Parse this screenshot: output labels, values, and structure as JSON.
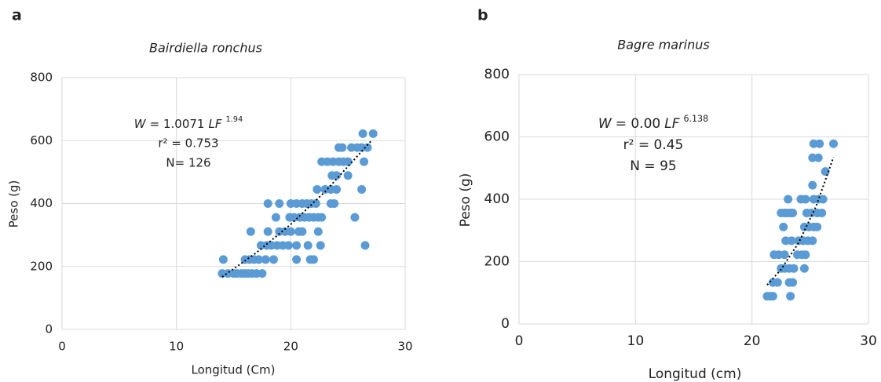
{
  "chart_data": [
    {
      "type": "scatter",
      "panel_label": "a",
      "title": "Bairdiella ronchus",
      "xlabel": "Longitud (Cm)",
      "ylabel": "Peso (g)",
      "equation": {
        "lhs": "W",
        "coef": "= 1.0071",
        "var": "LF",
        "exp": "1.94"
      },
      "r2": "r² = 0.753",
      "n": "N= 126",
      "color": "#5b9bd5",
      "grid": true,
      "xlim": [
        0,
        30
      ],
      "xticks": [
        0,
        10,
        20,
        30
      ],
      "ylim": [
        0,
        800
      ],
      "yticks": [
        0,
        200,
        400,
        600,
        800
      ],
      "x": [
        14,
        14.5,
        15,
        15.3,
        15.7,
        16,
        16.3,
        16.6,
        17,
        17.5,
        14.1,
        16,
        16.4,
        16.8,
        17.2,
        17.8,
        18.5,
        20.5,
        21.7,
        22,
        17.4,
        17.9,
        18.3,
        18.8,
        19.3,
        19.8,
        20.5,
        21.5,
        22.6,
        26.5,
        16.5,
        18,
        19,
        19.5,
        20,
        20.7,
        21,
        22.4,
        18.7,
        19.9,
        20.3,
        20.8,
        21.2,
        21.6,
        22,
        22.4,
        22.7,
        25.6,
        18,
        19,
        20,
        20.5,
        21,
        21.4,
        21.8,
        22.2,
        23.5,
        23.8,
        22.3,
        23,
        23.5,
        24,
        26.2,
        23.6,
        24,
        25,
        22.7,
        23.2,
        23.7,
        24.2,
        24.6,
        25,
        26.4,
        24.2,
        24.5,
        25.3,
        25.8,
        26.2,
        26.7,
        26.3,
        27.2
      ],
      "y": [
        178,
        178,
        178,
        178,
        178,
        178,
        178,
        178,
        178,
        178,
        222,
        222,
        222,
        222,
        222,
        222,
        222,
        222,
        222,
        222,
        267,
        267,
        267,
        267,
        267,
        267,
        267,
        267,
        267,
        267,
        311,
        311,
        311,
        311,
        311,
        311,
        311,
        311,
        356,
        356,
        356,
        356,
        356,
        356,
        356,
        356,
        356,
        356,
        400,
        400,
        400,
        400,
        400,
        400,
        400,
        400,
        400,
        400,
        445,
        445,
        445,
        445,
        445,
        489,
        489,
        489,
        533,
        533,
        533,
        533,
        533,
        533,
        533,
        578,
        578,
        578,
        578,
        578,
        578,
        622,
        622
      ],
      "trendline": {
        "x": [
          14,
          17,
          20,
          23,
          27
        ],
        "y": [
          167,
          244,
          334,
          438,
          598
        ]
      }
    },
    {
      "type": "scatter",
      "panel_label": "b",
      "title": "Bagre marinus",
      "xlabel": "Longitud (cm)",
      "ylabel": "Peso (g)",
      "equation": {
        "lhs": "W",
        "coef": "= 0.00",
        "var": "LF",
        "exp": "6.138"
      },
      "r2": "r² = 0.45",
      "n": "N = 95",
      "color": "#5b9bd5",
      "grid": true,
      "xlim": [
        0,
        30
      ],
      "xticks": [
        0,
        10,
        20,
        30
      ],
      "ylim": [
        0,
        800
      ],
      "yticks": [
        0,
        200,
        400,
        600,
        800
      ],
      "x": [
        21.3,
        21.6,
        21.8,
        23.3,
        21.8,
        22.2,
        23.2,
        23.5,
        22.5,
        22.8,
        23.2,
        23.6,
        24.5,
        21.9,
        22.3,
        22.8,
        23.9,
        24.3,
        24.6,
        22.9,
        23.4,
        24,
        24.4,
        24.8,
        25.2,
        22.7,
        24.5,
        24.9,
        25.3,
        25.6,
        22.5,
        22.8,
        23,
        23.3,
        23.5,
        24.7,
        25.1,
        25.6,
        26,
        23.1,
        24.2,
        24.6,
        25.3,
        25.7,
        26.1,
        25.2,
        26.3,
        25.2,
        25.7,
        25.3,
        25.8,
        27
      ],
      "y": [
        89,
        89,
        89,
        89,
        133,
        133,
        133,
        133,
        178,
        178,
        178,
        178,
        178,
        222,
        222,
        222,
        222,
        222,
        222,
        267,
        267,
        267,
        267,
        267,
        267,
        311,
        311,
        311,
        311,
        311,
        356,
        356,
        356,
        356,
        356,
        356,
        356,
        356,
        356,
        400,
        400,
        400,
        400,
        400,
        400,
        445,
        489,
        533,
        533,
        578,
        578,
        578
      ],
      "trendline": {
        "x": [
          21.3,
          22.5,
          24,
          25.5,
          27
        ],
        "y": [
          125,
          175,
          260,
          377,
          535
        ]
      }
    }
  ]
}
